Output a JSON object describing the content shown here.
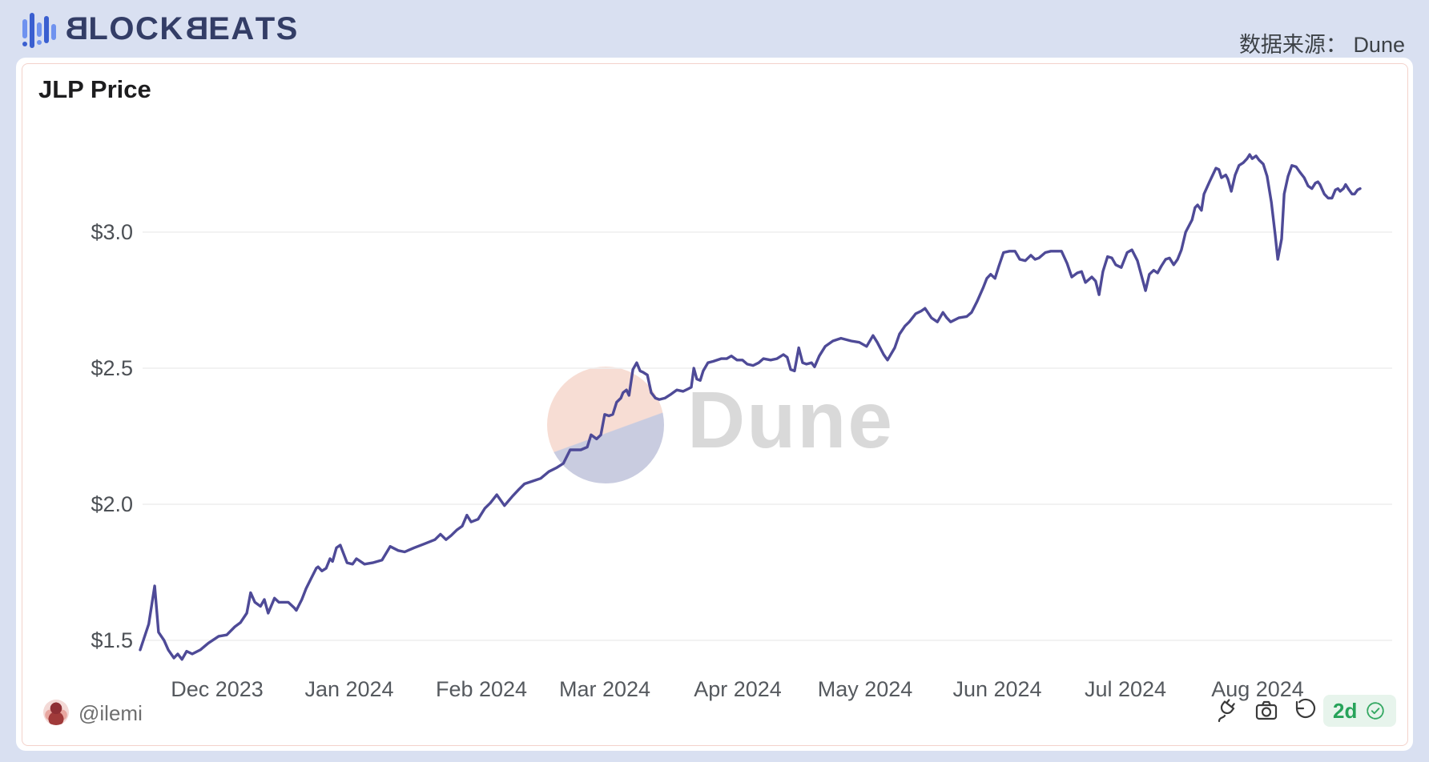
{
  "header": {
    "brand": "BLOCKBEATS",
    "source_label": "数据来源： Dune"
  },
  "watermark": {
    "text": "Dune"
  },
  "footer": {
    "handle": "@ilemi",
    "icons": [
      "plug-icon",
      "camera-icon",
      "rotate-ccw-icon"
    ],
    "badge": {
      "label": "2d",
      "status": "verified"
    }
  },
  "colors": {
    "page_bg": "#d9e0f1",
    "card_bg": "#ffffff",
    "card_border": "#f3d2cb",
    "line": "#4e4a97",
    "grid": "#ededed",
    "watermark_peach": "#f7ddd4",
    "watermark_lavender": "#c9cce0",
    "watermark_text": "#d9d9d9",
    "badge_green": "#27a35a",
    "badge_bg": "#e7f4ec",
    "brand_navy": "#333d66",
    "logo_blue_dark": "#3a5fd0",
    "logo_blue_light": "#6f92ef"
  },
  "chart_data": {
    "type": "line",
    "title": "JLP Price",
    "line_color": "#4e4a97",
    "grid_color": "#ededed",
    "legend": [],
    "y_axis": {
      "unit": "USD",
      "range": [
        1.4,
        3.35
      ],
      "grid": true,
      "ticks": [
        {
          "value": 1.5,
          "label": "$1.5"
        },
        {
          "value": 2.0,
          "label": "$2.0"
        },
        {
          "value": 2.5,
          "label": "$2.5"
        },
        {
          "value": 3.0,
          "label": "$3.0"
        }
      ]
    },
    "x_axis": {
      "unit": "days",
      "start_date": "2023-11-13",
      "day_span": 286,
      "ticks": [
        {
          "day": 18,
          "label": "Dec 2023"
        },
        {
          "day": 49,
          "label": "Jan 2024"
        },
        {
          "day": 80,
          "label": "Feb 2024"
        },
        {
          "day": 109,
          "label": "Mar 2024"
        },
        {
          "day": 140,
          "label": "Apr 2024"
        },
        {
          "day": 170,
          "label": "May 2024"
        },
        {
          "day": 201,
          "label": "Jun 2024"
        },
        {
          "day": 231,
          "label": "Jul 2024"
        },
        {
          "day": 262,
          "label": "Aug 2024"
        }
      ]
    },
    "series": [
      {
        "name": "JLP Price",
        "points": [
          [
            0,
            1.465
          ],
          [
            2,
            1.56
          ],
          [
            3.4,
            1.7
          ],
          [
            4.3,
            1.53
          ],
          [
            5.6,
            1.5
          ],
          [
            6.6,
            1.465
          ],
          [
            7.9,
            1.435
          ],
          [
            8.8,
            1.45
          ],
          [
            9.8,
            1.43
          ],
          [
            10.9,
            1.46
          ],
          [
            12.2,
            1.45
          ],
          [
            14.1,
            1.465
          ],
          [
            16,
            1.49
          ],
          [
            18.4,
            1.515
          ],
          [
            20.3,
            1.52
          ],
          [
            22.2,
            1.55
          ],
          [
            23.5,
            1.565
          ],
          [
            25,
            1.6
          ],
          [
            25.9,
            1.675
          ],
          [
            26.9,
            1.64
          ],
          [
            28.2,
            1.625
          ],
          [
            29.1,
            1.65
          ],
          [
            30,
            1.6
          ],
          [
            31.5,
            1.655
          ],
          [
            32.5,
            1.64
          ],
          [
            34.7,
            1.64
          ],
          [
            36.1,
            1.62
          ],
          [
            36.6,
            1.61
          ],
          [
            37.9,
            1.65
          ],
          [
            38.9,
            1.69
          ],
          [
            40,
            1.725
          ],
          [
            41.3,
            1.765
          ],
          [
            41.7,
            1.77
          ],
          [
            42.6,
            1.755
          ],
          [
            43.6,
            1.765
          ],
          [
            44.5,
            1.8
          ],
          [
            45.1,
            1.79
          ],
          [
            46,
            1.84
          ],
          [
            46.9,
            1.85
          ],
          [
            48.5,
            1.785
          ],
          [
            49.8,
            1.78
          ],
          [
            50.7,
            1.8
          ],
          [
            52.6,
            1.78
          ],
          [
            54.5,
            1.785
          ],
          [
            56.7,
            1.795
          ],
          [
            58.6,
            1.845
          ],
          [
            60.5,
            1.83
          ],
          [
            62,
            1.825
          ],
          [
            64.2,
            1.84
          ],
          [
            66.7,
            1.855
          ],
          [
            69.1,
            1.87
          ],
          [
            70.4,
            1.89
          ],
          [
            71.7,
            1.87
          ],
          [
            72.9,
            1.885
          ],
          [
            74.2,
            1.905
          ],
          [
            75.5,
            1.92
          ],
          [
            76.6,
            1.96
          ],
          [
            77.6,
            1.935
          ],
          [
            79.2,
            1.945
          ],
          [
            80.8,
            1.985
          ],
          [
            82.1,
            2.005
          ],
          [
            83.6,
            2.035
          ],
          [
            85.4,
            1.995
          ],
          [
            87.3,
            2.03
          ],
          [
            88.8,
            2.055
          ],
          [
            90.1,
            2.075
          ],
          [
            92,
            2.085
          ],
          [
            93.9,
            2.095
          ],
          [
            95.8,
            2.12
          ],
          [
            97.7,
            2.135
          ],
          [
            99.2,
            2.15
          ],
          [
            100.8,
            2.2
          ],
          [
            103.3,
            2.2
          ],
          [
            104.8,
            2.21
          ],
          [
            105.7,
            2.255
          ],
          [
            107,
            2.24
          ],
          [
            108,
            2.255
          ],
          [
            108.9,
            2.33
          ],
          [
            109.9,
            2.325
          ],
          [
            110.8,
            2.33
          ],
          [
            111.7,
            2.375
          ],
          [
            112.7,
            2.39
          ],
          [
            113.2,
            2.41
          ],
          [
            114,
            2.42
          ],
          [
            114.6,
            2.4
          ],
          [
            115.5,
            2.495
          ],
          [
            116.4,
            2.52
          ],
          [
            117.2,
            2.49
          ],
          [
            117.9,
            2.485
          ],
          [
            118.9,
            2.475
          ],
          [
            119.8,
            2.41
          ],
          [
            120.8,
            2.39
          ],
          [
            121.7,
            2.385
          ],
          [
            123,
            2.39
          ],
          [
            124.5,
            2.405
          ],
          [
            125.8,
            2.42
          ],
          [
            127.3,
            2.415
          ],
          [
            128.6,
            2.425
          ],
          [
            129.2,
            2.43
          ],
          [
            129.8,
            2.5
          ],
          [
            130.5,
            2.46
          ],
          [
            131.3,
            2.455
          ],
          [
            132,
            2.49
          ],
          [
            133.1,
            2.52
          ],
          [
            134.3,
            2.525
          ],
          [
            136.2,
            2.535
          ],
          [
            137.5,
            2.535
          ],
          [
            138.6,
            2.545
          ],
          [
            139.9,
            2.53
          ],
          [
            141.2,
            2.53
          ],
          [
            142.3,
            2.515
          ],
          [
            143.7,
            2.51
          ],
          [
            145,
            2.52
          ],
          [
            146.1,
            2.535
          ],
          [
            147.8,
            2.53
          ],
          [
            149.3,
            2.535
          ],
          [
            150.8,
            2.55
          ],
          [
            151.7,
            2.54
          ],
          [
            152.5,
            2.495
          ],
          [
            153.4,
            2.49
          ],
          [
            154.4,
            2.575
          ],
          [
            155.3,
            2.52
          ],
          [
            156.2,
            2.515
          ],
          [
            157.4,
            2.52
          ],
          [
            158.1,
            2.505
          ],
          [
            159.2,
            2.545
          ],
          [
            160.6,
            2.58
          ],
          [
            162.4,
            2.6
          ],
          [
            164.3,
            2.61
          ],
          [
            166.7,
            2.6
          ],
          [
            168.6,
            2.595
          ],
          [
            170.3,
            2.58
          ],
          [
            171.8,
            2.62
          ],
          [
            172.8,
            2.595
          ],
          [
            174.3,
            2.55
          ],
          [
            175.2,
            2.53
          ],
          [
            176.9,
            2.575
          ],
          [
            178,
            2.625
          ],
          [
            179.3,
            2.655
          ],
          [
            180.3,
            2.67
          ],
          [
            181.8,
            2.7
          ],
          [
            183.1,
            2.71
          ],
          [
            184,
            2.72
          ],
          [
            185.5,
            2.685
          ],
          [
            186.9,
            2.67
          ],
          [
            188.2,
            2.705
          ],
          [
            189.1,
            2.685
          ],
          [
            190,
            2.67
          ],
          [
            191.9,
            2.685
          ],
          [
            193.8,
            2.69
          ],
          [
            194.9,
            2.705
          ],
          [
            196.2,
            2.745
          ],
          [
            197.6,
            2.795
          ],
          [
            198.5,
            2.83
          ],
          [
            199.4,
            2.845
          ],
          [
            200.4,
            2.83
          ],
          [
            201.3,
            2.875
          ],
          [
            202.4,
            2.925
          ],
          [
            203.8,
            2.93
          ],
          [
            205.1,
            2.93
          ],
          [
            206.2,
            2.9
          ],
          [
            207.5,
            2.895
          ],
          [
            208.8,
            2.915
          ],
          [
            209.8,
            2.9
          ],
          [
            210.7,
            2.905
          ],
          [
            212.2,
            2.925
          ],
          [
            213.5,
            2.93
          ],
          [
            215,
            2.93
          ],
          [
            216,
            2.93
          ],
          [
            217.3,
            2.885
          ],
          [
            218.4,
            2.835
          ],
          [
            219.7,
            2.85
          ],
          [
            220.7,
            2.855
          ],
          [
            221.6,
            2.815
          ],
          [
            223.1,
            2.835
          ],
          [
            224,
            2.82
          ],
          [
            224.8,
            2.77
          ],
          [
            225.7,
            2.855
          ],
          [
            226.8,
            2.91
          ],
          [
            227.8,
            2.905
          ],
          [
            228.7,
            2.88
          ],
          [
            230,
            2.87
          ],
          [
            231.4,
            2.925
          ],
          [
            232.5,
            2.935
          ],
          [
            233.8,
            2.895
          ],
          [
            235.1,
            2.82
          ],
          [
            235.7,
            2.785
          ],
          [
            236.6,
            2.845
          ],
          [
            237.6,
            2.86
          ],
          [
            238.5,
            2.85
          ],
          [
            239.4,
            2.875
          ],
          [
            240.4,
            2.9
          ],
          [
            241.3,
            2.905
          ],
          [
            242.3,
            2.88
          ],
          [
            243.2,
            2.9
          ],
          [
            244.1,
            2.935
          ],
          [
            245.1,
            3.0
          ],
          [
            246.6,
            3.045
          ],
          [
            247.3,
            3.09
          ],
          [
            247.9,
            3.1
          ],
          [
            248.8,
            3.08
          ],
          [
            249.4,
            3.14
          ],
          [
            250.7,
            3.185
          ],
          [
            252.2,
            3.235
          ],
          [
            252.9,
            3.23
          ],
          [
            253.5,
            3.2
          ],
          [
            254.5,
            3.21
          ],
          [
            255,
            3.195
          ],
          [
            255.8,
            3.15
          ],
          [
            256.7,
            3.21
          ],
          [
            257.6,
            3.245
          ],
          [
            258.6,
            3.255
          ],
          [
            259.5,
            3.27
          ],
          [
            260.1,
            3.285
          ],
          [
            260.7,
            3.27
          ],
          [
            261.6,
            3.28
          ],
          [
            262.3,
            3.265
          ],
          [
            263.3,
            3.25
          ],
          [
            264.2,
            3.205
          ],
          [
            265.2,
            3.11
          ],
          [
            266.1,
            2.99
          ],
          [
            266.7,
            2.9
          ],
          [
            267.6,
            2.975
          ],
          [
            268.2,
            3.14
          ],
          [
            269.1,
            3.205
          ],
          [
            270,
            3.245
          ],
          [
            271,
            3.24
          ],
          [
            271.9,
            3.22
          ],
          [
            272.9,
            3.2
          ],
          [
            273.8,
            3.17
          ],
          [
            274.7,
            3.16
          ],
          [
            275.5,
            3.18
          ],
          [
            276.1,
            3.185
          ],
          [
            276.6,
            3.175
          ],
          [
            277.6,
            3.14
          ],
          [
            278.5,
            3.125
          ],
          [
            279.4,
            3.125
          ],
          [
            280.2,
            3.155
          ],
          [
            280.8,
            3.16
          ],
          [
            281.3,
            3.15
          ],
          [
            282.1,
            3.16
          ],
          [
            282.6,
            3.175
          ],
          [
            283.4,
            3.155
          ],
          [
            284.1,
            3.14
          ],
          [
            284.7,
            3.14
          ],
          [
            285.4,
            3.155
          ],
          [
            286,
            3.16
          ]
        ]
      }
    ]
  }
}
